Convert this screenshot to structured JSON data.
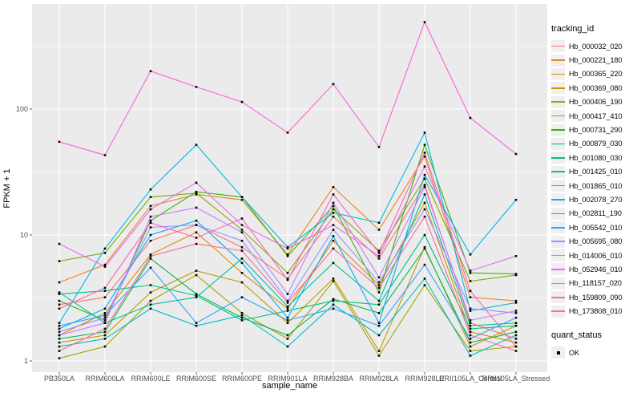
{
  "figure": {
    "bg": "#FFFFFF",
    "panel_bg": "#EBEBEB",
    "grid_color": "#FFFFFF",
    "tick_color": "#333333",
    "tick_label_color": "#4D4D4D"
  },
  "chart_data": {
    "type": "line",
    "title": "",
    "xlabel": "sample_name",
    "ylabel": "FPKM + 1",
    "y_scale": "log10",
    "y_ticks": [
      1,
      10,
      100
    ],
    "y_minor_ticks": [
      3.1623,
      31.623,
      316.23
    ],
    "ylim": [
      0.81,
      700
    ],
    "legend_position": "right",
    "marker": "black-square",
    "categories": [
      "PB350LA",
      "RRIM600LA",
      "RRIM600LE",
      "RRIM600SE",
      "RRIM600PE",
      "RRIM901LA",
      "RRIM928BA",
      "RRIM928LA",
      "RRIM928LE",
      "RRII105LA_Control",
      "RRII105LA_Stressed"
    ],
    "series": [
      {
        "name": "Hb_000032_020",
        "color": "#F8766D",
        "values": [
          2.8,
          3.2,
          9.0,
          12.0,
          8.0,
          4.5,
          14.0,
          6.5,
          25.0,
          2.0,
          1.5
        ]
      },
      {
        "name": "Hb_000221_180",
        "color": "#E88526",
        "values": [
          4.2,
          5.8,
          17.0,
          21.0,
          19.0,
          7.0,
          24.0,
          11.0,
          42.0,
          3.2,
          3.0
        ]
      },
      {
        "name": "Hb_000365_220",
        "color": "#D89000",
        "values": [
          1.6,
          2.4,
          7.0,
          10.5,
          5.0,
          2.6,
          9.0,
          4.0,
          18.0,
          1.7,
          1.4
        ]
      },
      {
        "name": "Hb_000369_080",
        "color": "#C49A00",
        "values": [
          1.4,
          1.6,
          3.5,
          5.2,
          4.2,
          2.0,
          4.5,
          1.2,
          8.0,
          1.3,
          1.9
        ]
      },
      {
        "name": "Hb_000406_190",
        "color": "#A3A500",
        "values": [
          1.05,
          1.3,
          3.0,
          4.8,
          2.4,
          1.5,
          4.3,
          1.1,
          4.0,
          1.2,
          1.3
        ]
      },
      {
        "name": "Hb_000417_410",
        "color": "#7CAE00",
        "values": [
          6.2,
          7.2,
          20.0,
          21.5,
          11.0,
          5.0,
          16.0,
          7.5,
          28.0,
          4.3,
          4.8
        ]
      },
      {
        "name": "Hb_000731_290",
        "color": "#39B600",
        "values": [
          3.0,
          2.1,
          13.0,
          22.0,
          20.0,
          6.8,
          17.0,
          3.5,
          52.0,
          5.0,
          4.9
        ]
      },
      {
        "name": "Hb_000879_030",
        "color": "#00BB4E",
        "values": [
          1.5,
          1.7,
          6.5,
          3.4,
          2.2,
          1.6,
          3.1,
          2.4,
          7.8,
          1.4,
          1.7
        ]
      },
      {
        "name": "Hb_001080_030",
        "color": "#00BF7D",
        "values": [
          3.4,
          3.6,
          4.0,
          3.3,
          2.1,
          2.5,
          3.0,
          2.8,
          10.0,
          1.8,
          1.9
        ]
      },
      {
        "name": "Hb_001425_010",
        "color": "#00C1A3",
        "values": [
          3.5,
          2.0,
          2.8,
          3.2,
          6.5,
          2.7,
          6.0,
          3.0,
          21.0,
          1.9,
          2.0
        ]
      },
      {
        "name": "Hb_001865_010",
        "color": "#00BFC4",
        "values": [
          1.3,
          1.5,
          2.6,
          1.9,
          2.3,
          1.3,
          2.8,
          1.6,
          4.5,
          1.1,
          1.6
        ]
      },
      {
        "name": "Hb_002078_270",
        "color": "#00BAE0",
        "values": [
          2.0,
          7.8,
          23.0,
          52.0,
          20.0,
          8.0,
          15.0,
          12.5,
          65.0,
          2.5,
          2.9
        ]
      },
      {
        "name": "Hb_002811_190",
        "color": "#00B0F6",
        "values": [
          1.8,
          2.6,
          10.0,
          13.0,
          6.0,
          2.2,
          9.8,
          2.0,
          30.0,
          7.0,
          19.0
        ]
      },
      {
        "name": "Hb_005542_010",
        "color": "#35A2FF",
        "values": [
          1.9,
          2.3,
          5.5,
          2.0,
          3.2,
          2.1,
          2.6,
          1.9,
          5.8,
          1.5,
          2.2
        ]
      },
      {
        "name": "Hb_005695_080",
        "color": "#9590FF",
        "values": [
          1.7,
          2.2,
          11.5,
          12.0,
          9.0,
          3.0,
          11.0,
          4.2,
          16.0,
          2.6,
          2.4
        ]
      },
      {
        "name": "Hb_014006_010",
        "color": "#C77CFF",
        "values": [
          1.6,
          2.0,
          14.0,
          16.5,
          10.5,
          3.4,
          18.0,
          4.6,
          24.0,
          2.1,
          2.5
        ]
      },
      {
        "name": "Hb_052946_010",
        "color": "#E76BF3",
        "values": [
          8.5,
          5.6,
          16.0,
          26.0,
          12.0,
          7.8,
          12.0,
          6.8,
          35.0,
          5.2,
          6.8
        ]
      },
      {
        "name": "Hb_118157_020",
        "color": "#FA62DB",
        "values": [
          55,
          43,
          200,
          150,
          114,
          65,
          158,
          50,
          490,
          85,
          44
        ]
      },
      {
        "name": "Hb_159809_090",
        "color": "#FF62BC",
        "values": [
          2.6,
          3.8,
          12.5,
          9.5,
          13.5,
          4.4,
          21.0,
          7.2,
          45.0,
          3.6,
          1.3
        ]
      },
      {
        "name": "Hb_173808_010",
        "color": "#FF6A98",
        "values": [
          1.2,
          1.8,
          6.8,
          8.5,
          7.5,
          2.9,
          7.8,
          3.8,
          14.0,
          1.6,
          1.2
        ]
      }
    ]
  },
  "legend": {
    "tracking_title": "tracking_id",
    "quant_title": "quant_status",
    "quant_items": [
      {
        "label": "OK",
        "marker": "black-square",
        "color": "#000000"
      }
    ]
  }
}
